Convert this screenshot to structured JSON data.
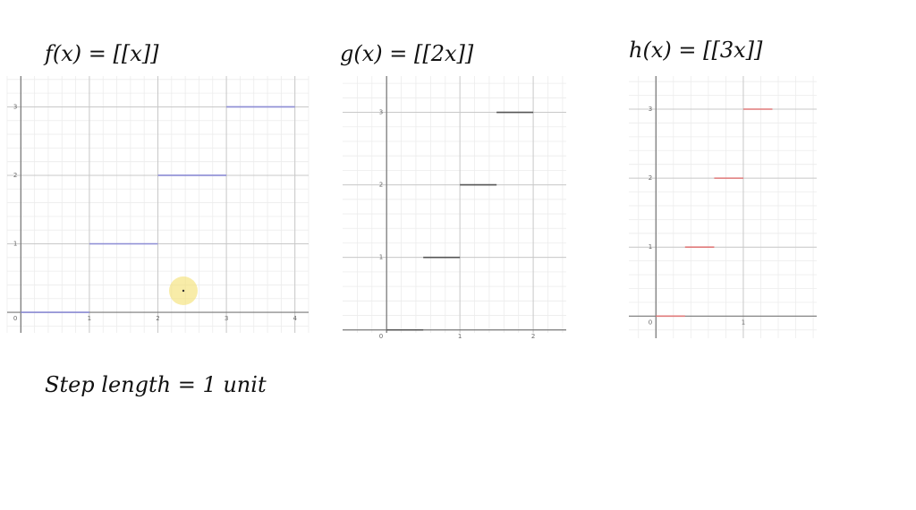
{
  "chart_data": [
    {
      "type": "step",
      "title": "f(x) = [[x]]",
      "color": "#8c8cd4",
      "grid": true,
      "xlim": [
        -0.2,
        4.2
      ],
      "ylim": [
        -0.3,
        3.45
      ],
      "xticks": [
        0,
        1,
        2,
        3,
        4
      ],
      "yticks": [
        1,
        2,
        3
      ],
      "segments": [
        {
          "x": [
            0,
            1
          ],
          "y": 0
        },
        {
          "x": [
            1,
            2
          ],
          "y": 1
        },
        {
          "x": [
            2,
            3
          ],
          "y": 2
        },
        {
          "x": [
            3,
            4
          ],
          "y": 3
        }
      ]
    },
    {
      "type": "step",
      "title": "g(x) = [[2x]]",
      "color": "#555555",
      "grid": true,
      "xlim": [
        -0.6,
        2.45
      ],
      "ylim": [
        -0.04,
        3.5
      ],
      "xticks": [
        0,
        1,
        2
      ],
      "yticks": [
        1,
        2,
        3
      ],
      "segments": [
        {
          "x": [
            0,
            0.5
          ],
          "y": 0
        },
        {
          "x": [
            0.5,
            1
          ],
          "y": 1
        },
        {
          "x": [
            1,
            1.5
          ],
          "y": 2
        },
        {
          "x": [
            1.5,
            2
          ],
          "y": 3
        }
      ]
    },
    {
      "type": "step",
      "title": "h(x) = [[3x]]",
      "color": "#e07a7a",
      "grid": true,
      "xlim": [
        -0.31,
        1.84
      ],
      "ylim": [
        -0.32,
        3.48
      ],
      "xticks": [
        0,
        1
      ],
      "yticks": [
        1,
        2,
        3
      ],
      "segments": [
        {
          "x": [
            0,
            0.333
          ],
          "y": 0
        },
        {
          "x": [
            0.333,
            0.667
          ],
          "y": 1
        },
        {
          "x": [
            0.667,
            1
          ],
          "y": 2
        },
        {
          "x": [
            1,
            1.333
          ],
          "y": 3
        }
      ]
    }
  ],
  "annotation": "Step length = 1 unit"
}
